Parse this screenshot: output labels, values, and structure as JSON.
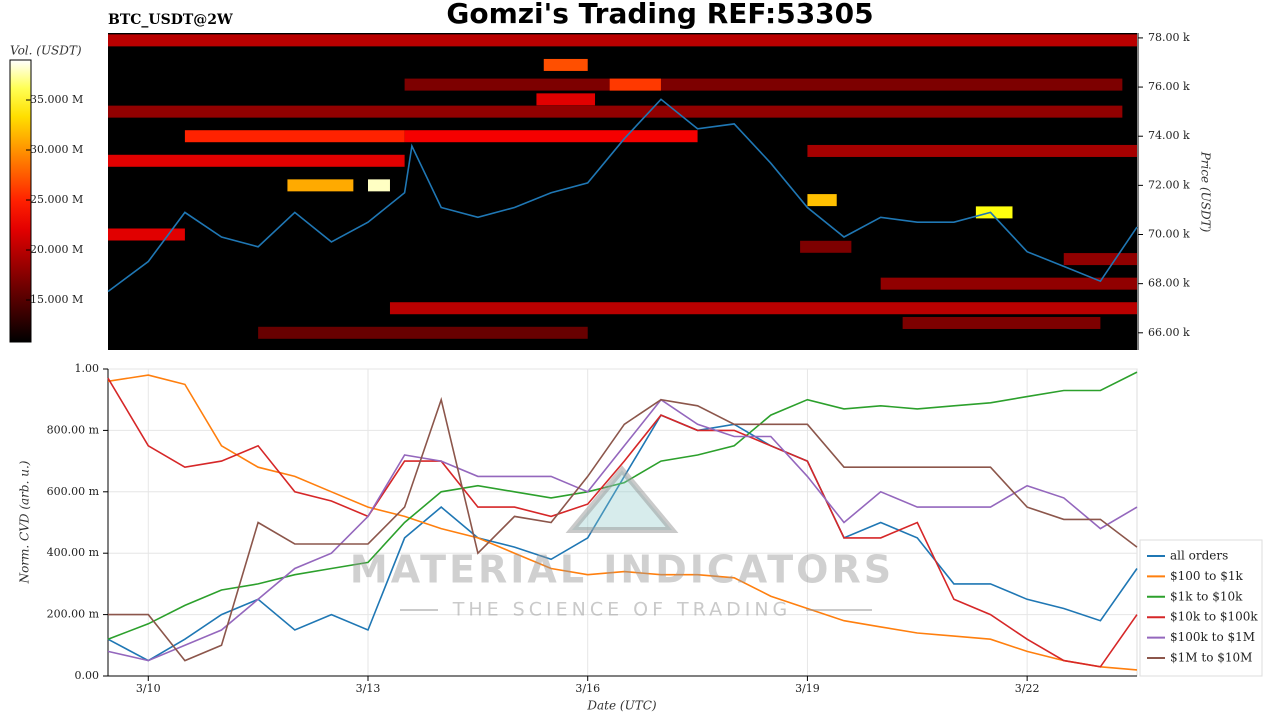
{
  "chart_data": [
    {
      "type": "heatmap",
      "title": "Gomzi's Trading REF:53305",
      "subtitle": "BTC_USDT@2W",
      "ylabel": "Price (USDT)",
      "xlim": [
        9.45,
        23.5
      ],
      "ylim": [
        65300,
        78200
      ],
      "yticks": [
        {
          "value": 66000,
          "label": "66.00 k"
        },
        {
          "value": 68000,
          "label": "68.00 k"
        },
        {
          "value": 70000,
          "label": "70.00 k"
        },
        {
          "value": 72000,
          "label": "72.00 k"
        },
        {
          "value": 74000,
          "label": "74.00 k"
        },
        {
          "value": 76000,
          "label": "76.00 k"
        },
        {
          "value": 78000,
          "label": "78.00 k"
        }
      ],
      "colorbar": {
        "label": "Vol. (USDT)",
        "lim": [
          10800000,
          39000000
        ],
        "ticks": [
          {
            "value": 15000000,
            "label": "15.000 M"
          },
          {
            "value": 20000000,
            "label": "20.000 M"
          },
          {
            "value": 25000000,
            "label": "25.000 M"
          },
          {
            "value": 30000000,
            "label": "30.000 M"
          },
          {
            "value": 35000000,
            "label": "35.000 M"
          }
        ]
      },
      "bands": [
        {
          "price": 77900,
          "start": 9.45,
          "end": 23.5,
          "volume": 20000000
        },
        {
          "price": 76900,
          "start": 15.4,
          "end": 16.0,
          "volume": 27000000
        },
        {
          "price": 76100,
          "start": 13.5,
          "end": 23.3,
          "volume": 17000000
        },
        {
          "price": 76100,
          "start": 16.3,
          "end": 17.0,
          "volume": 26000000
        },
        {
          "price": 75500,
          "start": 15.3,
          "end": 16.1,
          "volume": 22000000
        },
        {
          "price": 75000,
          "start": 9.45,
          "end": 23.3,
          "volume": 18000000
        },
        {
          "price": 74000,
          "start": 10.5,
          "end": 13.5,
          "volume": 25000000
        },
        {
          "price": 74000,
          "start": 13.5,
          "end": 17.5,
          "volume": 23000000
        },
        {
          "price": 73400,
          "start": 19.0,
          "end": 23.5,
          "volume": 19000000
        },
        {
          "price": 73000,
          "start": 9.45,
          "end": 13.5,
          "volume": 22000000
        },
        {
          "price": 72000,
          "start": 11.9,
          "end": 12.8,
          "volume": 31000000
        },
        {
          "price": 72000,
          "start": 13.0,
          "end": 13.3,
          "volume": 38000000
        },
        {
          "price": 71400,
          "start": 19.0,
          "end": 19.4,
          "volume": 32000000
        },
        {
          "price": 70900,
          "start": 21.3,
          "end": 21.8,
          "volume": 35000000
        },
        {
          "price": 70000,
          "start": 9.45,
          "end": 10.5,
          "volume": 22000000
        },
        {
          "price": 69500,
          "start": 18.9,
          "end": 19.6,
          "volume": 17000000
        },
        {
          "price": 69000,
          "start": 22.5,
          "end": 23.5,
          "volume": 18000000
        },
        {
          "price": 68000,
          "start": 20.0,
          "end": 23.5,
          "volume": 18000000
        },
        {
          "price": 67000,
          "start": 13.3,
          "end": 23.5,
          "volume": 20000000
        },
        {
          "price": 66400,
          "start": 20.3,
          "end": 23.0,
          "volume": 17000000
        },
        {
          "price": 66000,
          "start": 11.5,
          "end": 16.0,
          "volume": 16000000
        }
      ],
      "price_line": {
        "color": "#1f77b4",
        "x": [
          9.45,
          10,
          10.5,
          11,
          11.5,
          12,
          12.5,
          13,
          13.5,
          13.6,
          14,
          14.5,
          15,
          15.5,
          16,
          16.5,
          17,
          17.5,
          18,
          18.5,
          19,
          19.5,
          20,
          20.5,
          21,
          21.5,
          22,
          22.5,
          23,
          23.5
        ],
        "values": [
          67680,
          68900,
          70900,
          69900,
          69500,
          70900,
          69700,
          70500,
          71700,
          73600,
          71100,
          70700,
          71100,
          71700,
          72100,
          73900,
          75500,
          74300,
          74500,
          72900,
          71100,
          69900,
          70700,
          70500,
          70500,
          70900,
          69300,
          68700,
          68100,
          70300
        ]
      }
    },
    {
      "type": "line",
      "xlabel": "Date (UTC)",
      "ylabel": "Norm. CVD (arb. u.)",
      "grid": true,
      "legend": "right",
      "xlim": [
        9.45,
        23.5
      ],
      "ylim": [
        0,
        1
      ],
      "xticks": [
        {
          "value": 10,
          "label": "3/10"
        },
        {
          "value": 13,
          "label": "3/13"
        },
        {
          "value": 16,
          "label": "3/16"
        },
        {
          "value": 19,
          "label": "3/19"
        },
        {
          "value": 22,
          "label": "3/22"
        }
      ],
      "yticks": [
        {
          "value": 0,
          "label": "0.00"
        },
        {
          "value": 0.2,
          "label": "200.00 m"
        },
        {
          "value": 0.4,
          "label": "400.00 m"
        },
        {
          "value": 0.6,
          "label": "600.00 m"
        },
        {
          "value": 0.8,
          "label": "800.00 m"
        },
        {
          "value": 1,
          "label": "1.00"
        }
      ],
      "x": [
        9.45,
        10,
        10.5,
        11,
        11.5,
        12,
        12.5,
        13,
        13.5,
        14,
        14.5,
        15,
        15.5,
        16,
        16.5,
        17,
        17.5,
        18,
        18.5,
        19,
        19.5,
        20,
        20.5,
        21,
        21.5,
        22,
        22.5,
        23,
        23.5
      ],
      "series": [
        {
          "name": "all orders",
          "color": "#1f77b4",
          "values": [
            0.12,
            0.05,
            0.12,
            0.2,
            0.25,
            0.15,
            0.2,
            0.15,
            0.45,
            0.55,
            0.45,
            0.42,
            0.38,
            0.45,
            0.65,
            0.85,
            0.8,
            0.82,
            0.75,
            0.7,
            0.45,
            0.5,
            0.45,
            0.3,
            0.3,
            0.25,
            0.22,
            0.18,
            0.35
          ]
        },
        {
          "name": "$100 to $1k",
          "color": "#ff7f0e",
          "values": [
            0.96,
            0.98,
            0.95,
            0.75,
            0.68,
            0.65,
            0.6,
            0.55,
            0.52,
            0.48,
            0.45,
            0.4,
            0.35,
            0.33,
            0.34,
            0.33,
            0.33,
            0.32,
            0.26,
            0.22,
            0.18,
            0.16,
            0.14,
            0.13,
            0.12,
            0.08,
            0.05,
            0.03,
            0.02
          ]
        },
        {
          "name": "$1k to $10k",
          "color": "#2ca02c",
          "values": [
            0.12,
            0.17,
            0.23,
            0.28,
            0.3,
            0.33,
            0.35,
            0.37,
            0.5,
            0.6,
            0.62,
            0.6,
            0.58,
            0.6,
            0.63,
            0.7,
            0.72,
            0.75,
            0.85,
            0.9,
            0.87,
            0.88,
            0.87,
            0.88,
            0.89,
            0.91,
            0.93,
            0.93,
            0.99
          ]
        },
        {
          "name": "$10k to $100k",
          "color": "#d62728",
          "values": [
            0.97,
            0.75,
            0.68,
            0.7,
            0.75,
            0.6,
            0.57,
            0.52,
            0.7,
            0.7,
            0.55,
            0.55,
            0.52,
            0.56,
            0.7,
            0.85,
            0.8,
            0.8,
            0.75,
            0.7,
            0.45,
            0.45,
            0.5,
            0.25,
            0.2,
            0.12,
            0.05,
            0.03,
            0.2
          ]
        },
        {
          "name": "$100k to $1M",
          "color": "#9467bd",
          "values": [
            0.08,
            0.05,
            0.1,
            0.15,
            0.25,
            0.35,
            0.4,
            0.52,
            0.72,
            0.7,
            0.65,
            0.65,
            0.65,
            0.6,
            0.75,
            0.9,
            0.82,
            0.78,
            0.78,
            0.65,
            0.5,
            0.6,
            0.55,
            0.55,
            0.55,
            0.62,
            0.58,
            0.48,
            0.55
          ]
        },
        {
          "name": "$1M to $10M",
          "color": "#8c564b",
          "values": [
            0.2,
            0.2,
            0.05,
            0.1,
            0.5,
            0.43,
            0.43,
            0.43,
            0.55,
            0.9,
            0.4,
            0.52,
            0.5,
            0.65,
            0.82,
            0.9,
            0.88,
            0.82,
            0.82,
            0.82,
            0.68,
            0.68,
            0.68,
            0.68,
            0.68,
            0.55,
            0.51,
            0.51,
            0.42
          ]
        }
      ]
    }
  ],
  "watermark": {
    "text": "MATERIAL INDICATORS",
    "tagline": "THE SCIENCE OF TRADING"
  }
}
